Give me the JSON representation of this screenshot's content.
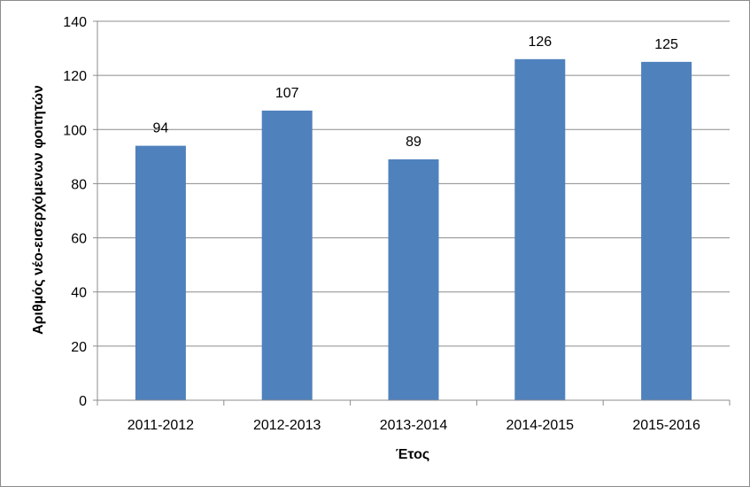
{
  "chart_data": {
    "type": "bar",
    "categories": [
      "2011-2012",
      "2012-2013",
      "2013-2014",
      "2014-2015",
      "2015-2016"
    ],
    "values": [
      94,
      107,
      89,
      126,
      125
    ],
    "data_labels": [
      "94",
      "107",
      "89",
      "126",
      "125"
    ],
    "xlabel": "Έτος",
    "ylabel": "Αριθμός νέο-εισερχόμενων φοιτητών",
    "ylim": [
      0,
      140
    ],
    "yticks": [
      0,
      20,
      40,
      60,
      80,
      100,
      120,
      140
    ],
    "ytick_labels": [
      "0",
      "20",
      "40",
      "60",
      "80",
      "100",
      "120",
      "140"
    ],
    "grid": true,
    "legend": "none",
    "bar_color": "#4F81BD",
    "grid_color": "#8C8C8C"
  }
}
